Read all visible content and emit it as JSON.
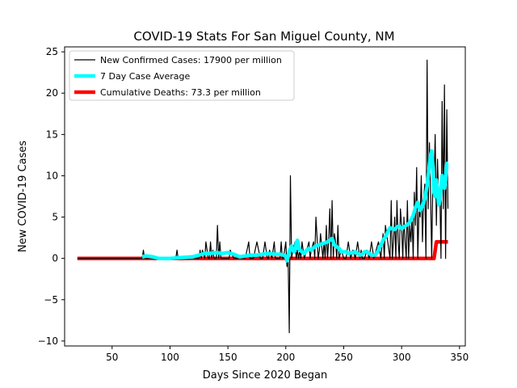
{
  "chart_data": {
    "type": "line",
    "title": "COVID-19 Stats For San Miguel County, NM",
    "xlabel": "Days Since 2020 Began",
    "ylabel": "New COVID-19 Cases",
    "xlim": [
      9,
      355
    ],
    "ylim": [
      -10.6,
      25.6
    ],
    "xticks": [
      50,
      100,
      150,
      200,
      250,
      300,
      350
    ],
    "yticks": [
      -10,
      -5,
      0,
      5,
      10,
      15,
      20,
      25
    ],
    "grid": false,
    "legend_position": "top-left",
    "colors": {
      "daily": "#000000",
      "avg": "#00ffff",
      "deaths": "#ff0000"
    },
    "series": [
      {
        "name": "New Confirmed Cases: 17900 per million",
        "x": [
          20,
          76,
          77,
          78,
          79,
          80,
          85,
          100,
          105,
          106,
          107,
          110,
          125,
          126,
          127,
          128,
          130,
          131,
          133,
          134,
          135,
          136,
          137,
          138,
          140,
          141,
          142,
          143,
          144,
          145,
          150,
          151,
          152,
          155,
          165,
          168,
          169,
          170,
          172,
          175,
          178,
          180,
          182,
          184,
          185,
          186,
          188,
          190,
          191,
          192,
          194,
          195,
          196,
          197,
          198,
          200,
          201,
          202,
          203,
          204,
          205,
          206,
          208,
          209,
          210,
          211,
          212,
          213,
          214,
          216,
          218,
          220,
          221,
          222,
          224,
          225,
          226,
          228,
          229,
          230,
          232,
          233,
          234,
          235,
          236,
          237,
          238,
          239,
          240,
          241,
          242,
          243,
          244,
          245,
          246,
          248,
          250,
          252,
          254,
          256,
          258,
          260,
          262,
          264,
          265,
          266,
          268,
          270,
          272,
          274,
          276,
          278,
          280,
          282,
          284,
          285,
          286,
          288,
          290,
          291,
          292,
          293,
          294,
          295,
          296,
          297,
          298,
          299,
          300,
          301,
          302,
          303,
          304,
          305,
          306,
          307,
          308,
          309,
          310,
          311,
          312,
          313,
          314,
          315,
          316,
          317,
          318,
          319,
          320,
          321,
          322,
          323,
          324,
          325,
          326,
          327,
          328,
          329,
          330,
          331,
          332,
          333,
          334,
          335,
          336,
          337,
          338,
          339,
          340
        ],
        "y": [
          0,
          0,
          1,
          0,
          0,
          0,
          0,
          0,
          0,
          1,
          0,
          0,
          0,
          1,
          0,
          1,
          0,
          2,
          0,
          0,
          2,
          0,
          1,
          0,
          0,
          4,
          0,
          2,
          0,
          0,
          0,
          0,
          1,
          0,
          0,
          2,
          0,
          0,
          0,
          2,
          0,
          0,
          2,
          0,
          0,
          1,
          0,
          2,
          0,
          0,
          0,
          0,
          2,
          0,
          0,
          2,
          -1,
          0,
          -9,
          10,
          0,
          1,
          2,
          0,
          1,
          0,
          1,
          0,
          2,
          0,
          1,
          2,
          0,
          1,
          2,
          0,
          5,
          0,
          1,
          3,
          0,
          2,
          0,
          4,
          0,
          2,
          6,
          0,
          7,
          0,
          3,
          2,
          0,
          4,
          0,
          1,
          0,
          0,
          2,
          0,
          1,
          0,
          2,
          0,
          1,
          0,
          0,
          1,
          0,
          2,
          0,
          1,
          2,
          0,
          3,
          0,
          4,
          2,
          0,
          7,
          0,
          2,
          5,
          0,
          7,
          2,
          0,
          6,
          4,
          0,
          5,
          2,
          0,
          7,
          0,
          4,
          2,
          5,
          0,
          8,
          4,
          11,
          0,
          6,
          5,
          10,
          2,
          7,
          9,
          0,
          24,
          6,
          14,
          8,
          0,
          10,
          9,
          15,
          4,
          12,
          7,
          8,
          0,
          19,
          6,
          21,
          0,
          18,
          6
        ],
        "color": "#000000"
      },
      {
        "name": "7 Day Case Average",
        "x": [
          76,
          80,
          85,
          90,
          100,
          110,
          120,
          125,
          130,
          135,
          140,
          145,
          150,
          155,
          160,
          165,
          170,
          175,
          180,
          185,
          190,
          195,
          198,
          200,
          201,
          202,
          203,
          204,
          205,
          206,
          207,
          208,
          209,
          210,
          211,
          212,
          214,
          216,
          218,
          220,
          222,
          224,
          226,
          228,
          230,
          232,
          234,
          236,
          238,
          240,
          242,
          244,
          246,
          248,
          250,
          252,
          254,
          256,
          258,
          260,
          262,
          264,
          266,
          268,
          270,
          272,
          274,
          276,
          278,
          280,
          282,
          284,
          286,
          288,
          290,
          292,
          294,
          296,
          298,
          300,
          302,
          304,
          306,
          308,
          310,
          312,
          314,
          316,
          318,
          320,
          322,
          324,
          325,
          326,
          327,
          328,
          329,
          330,
          331,
          332,
          333,
          334,
          335,
          336,
          337,
          338,
          339,
          340
        ],
        "y": [
          0.2,
          0.3,
          0.2,
          0.0,
          0.0,
          0.1,
          0.2,
          0.4,
          0.6,
          0.6,
          0.7,
          0.6,
          0.7,
          0.5,
          0.2,
          0.3,
          0.4,
          0.4,
          0.5,
          0.6,
          0.5,
          0.5,
          0.4,
          0.3,
          -0.3,
          0.2,
          0.8,
          1.2,
          1.5,
          1.0,
          0.8,
          1.0,
          1.8,
          2.2,
          1.5,
          1.0,
          0.8,
          0.6,
          1.0,
          1.2,
          1.0,
          1.3,
          1.5,
          1.6,
          1.7,
          1.8,
          1.9,
          2.0,
          2.2,
          2.4,
          1.6,
          1.4,
          1.2,
          0.8,
          0.8,
          0.8,
          0.6,
          0.7,
          0.7,
          0.8,
          0.6,
          0.4,
          0.5,
          0.8,
          0.8,
          0.6,
          0.4,
          0.4,
          0.5,
          1.0,
          1.6,
          2.2,
          2.6,
          3.2,
          3.7,
          3.6,
          3.5,
          3.8,
          3.9,
          3.6,
          3.8,
          4.0,
          4.2,
          4.6,
          5.2,
          6.2,
          6.8,
          5.8,
          6.3,
          7.2,
          8.8,
          11.2,
          12.5,
          13.0,
          11.0,
          8.0,
          7.5,
          9.5,
          8.0,
          6.5,
          7.0,
          8.5,
          10.0,
          9.5,
          8.5,
          9.5,
          11.5,
          11.5
        ],
        "color": "#00ffff"
      },
      {
        "name": "Cumulative Deaths: 73.3 per million",
        "x": [
          20,
          328,
          330,
          340
        ],
        "y": [
          0,
          0,
          2,
          2
        ],
        "color": "#ff0000"
      }
    ]
  }
}
